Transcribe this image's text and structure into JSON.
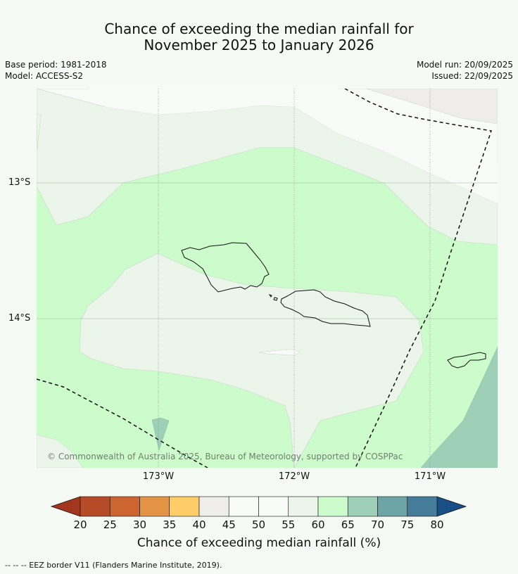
{
  "title": {
    "line1": "Chance of exceeding the median rainfall for",
    "line2": "November 2025 to January 2026"
  },
  "meta": {
    "base_period": "Base period: 1981-2018",
    "model": "Model: ACCESS-S2",
    "model_run": "Model run: 20/09/2025",
    "issued": "Issued: 22/09/2025"
  },
  "map": {
    "lat_labels": [
      "13°S",
      "14°S"
    ],
    "lon_labels": [
      "173°W",
      "172°W",
      "171°W"
    ],
    "copyright": "© Commonwealth of Australia 2025, Bureau of Meteorology, supported by COSPPac",
    "regions": [
      {
        "name": "45-50 zone",
        "color": "#f8fbf7"
      },
      {
        "name": "55-60 zone",
        "color": "#ebf5ea"
      },
      {
        "name": "60-65 zone",
        "color": "#ccfccb"
      },
      {
        "name": "65-70 zone",
        "color": "#9ed0b8"
      },
      {
        "name": "40-45 zone",
        "color": "#efedea"
      }
    ]
  },
  "colorbar": {
    "title": "Chance of exceeding median rainfall (%)",
    "ticks": [
      "20",
      "25",
      "30",
      "35",
      "40",
      "45",
      "50",
      "55",
      "60",
      "65",
      "70",
      "75",
      "80"
    ],
    "colors": [
      "#a3361f",
      "#b54b27",
      "#cd6532",
      "#e39446",
      "#fdcd68",
      "#efedea",
      "#f8fbf7",
      "#f8fbf7",
      "#ebf5ea",
      "#ccfccb",
      "#9ed0b8",
      "#6da4a6",
      "#457c99",
      "#1a4f86"
    ]
  },
  "footer": {
    "eez_note": "--  --  -- EEZ border V11 (Flanders Marine Institute, 2019)."
  }
}
